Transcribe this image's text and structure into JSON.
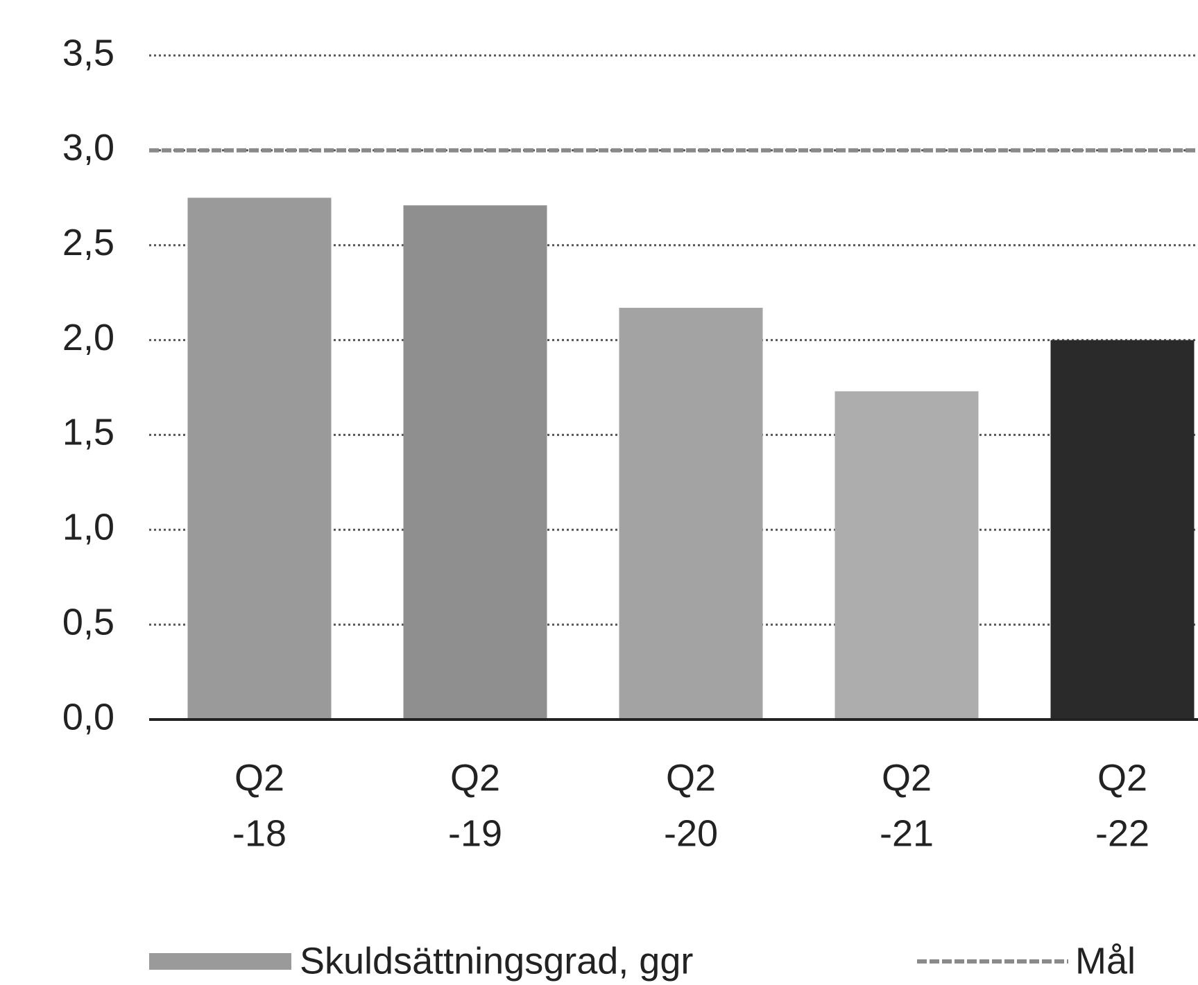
{
  "chart_data": {
    "type": "bar",
    "categories": [
      [
        "Q2",
        "-18"
      ],
      [
        "Q2",
        "-19"
      ],
      [
        "Q2",
        "-20"
      ],
      [
        "Q2",
        "-21"
      ],
      [
        "Q2",
        "-22"
      ]
    ],
    "series": [
      {
        "name": "Skuldsättningsgrad, ggr",
        "values": [
          2.75,
          2.71,
          2.17,
          1.73,
          2.0
        ],
        "colors": [
          "#9a9a9a",
          "#8f8f8f",
          "#a3a3a3",
          "#adadad",
          "#2a2a2a"
        ]
      }
    ],
    "target": {
      "name": "Mål",
      "value": 3.0,
      "color": "#8a8a8a"
    },
    "ylim": [
      0,
      3.5
    ],
    "yticks": [
      {
        "value": 0,
        "label": "0,0"
      },
      {
        "value": 0.5,
        "label": "0,5"
      },
      {
        "value": 1,
        "label": "1,0"
      },
      {
        "value": 1.5,
        "label": "1,5"
      },
      {
        "value": 2,
        "label": "2,0"
      },
      {
        "value": 2.5,
        "label": "2,5"
      },
      {
        "value": 3,
        "label": "3,0"
      },
      {
        "value": 3.5,
        "label": "3,5"
      }
    ],
    "grid": true
  }
}
